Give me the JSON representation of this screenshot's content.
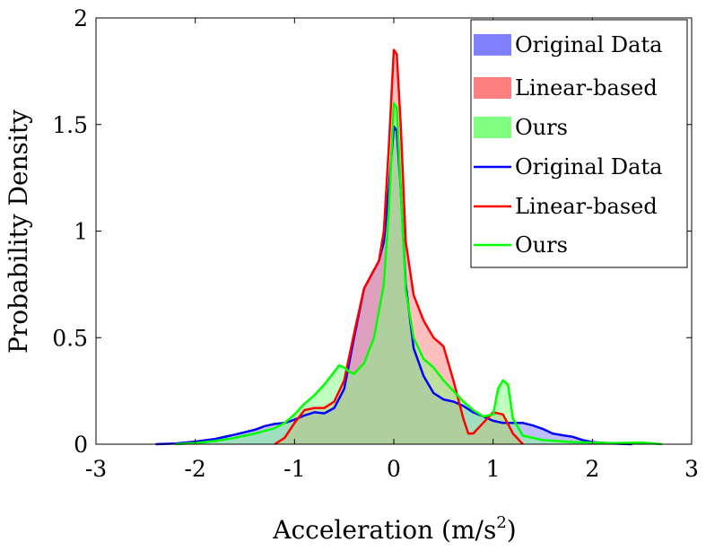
{
  "chart_data": {
    "type": "area",
    "title": "",
    "xlabel_prefix": "Acceleration (m/s",
    "xlabel_sup": "2",
    "xlabel_suffix": ")",
    "ylabel": "Probability Density",
    "xlim": [
      -3,
      3
    ],
    "ylim": [
      0,
      2
    ],
    "x_ticks": [
      -3,
      -2,
      -1,
      0,
      1,
      2,
      3
    ],
    "x_tick_labels": [
      "-3",
      "-2",
      "-1",
      "0",
      "1",
      "2",
      "3"
    ],
    "y_ticks": [
      0,
      0.5,
      1,
      1.5,
      2
    ],
    "y_tick_labels": [
      "0",
      "0.5",
      "1",
      "1.5",
      "2"
    ],
    "legend_position": "top-right",
    "series": [
      {
        "name": "Original Data",
        "color": "#0000ff",
        "fill": "#8080ff",
        "points": [
          [
            -2.4,
            0
          ],
          [
            -2.2,
            0.003
          ],
          [
            -2.0,
            0.012
          ],
          [
            -1.8,
            0.025
          ],
          [
            -1.6,
            0.045
          ],
          [
            -1.4,
            0.068
          ],
          [
            -1.3,
            0.085
          ],
          [
            -1.2,
            0.095
          ],
          [
            -1.1,
            0.1
          ],
          [
            -1.0,
            0.115
          ],
          [
            -0.9,
            0.135
          ],
          [
            -0.8,
            0.15
          ],
          [
            -0.7,
            0.145
          ],
          [
            -0.6,
            0.17
          ],
          [
            -0.5,
            0.26
          ],
          [
            -0.4,
            0.5
          ],
          [
            -0.3,
            0.73
          ],
          [
            -0.22,
            0.8
          ],
          [
            -0.15,
            0.86
          ],
          [
            -0.1,
            0.95
          ],
          [
            -0.05,
            1.2
          ],
          [
            0.0,
            1.49
          ],
          [
            0.03,
            1.47
          ],
          [
            0.07,
            1.2
          ],
          [
            0.12,
            0.75
          ],
          [
            0.2,
            0.45
          ],
          [
            0.3,
            0.32
          ],
          [
            0.4,
            0.24
          ],
          [
            0.5,
            0.21
          ],
          [
            0.6,
            0.2
          ],
          [
            0.7,
            0.18
          ],
          [
            0.8,
            0.15
          ],
          [
            0.9,
            0.13
          ],
          [
            1.0,
            0.11
          ],
          [
            1.1,
            0.1
          ],
          [
            1.2,
            0.1
          ],
          [
            1.3,
            0.1
          ],
          [
            1.4,
            0.088
          ],
          [
            1.5,
            0.072
          ],
          [
            1.6,
            0.05
          ],
          [
            1.7,
            0.042
          ],
          [
            1.8,
            0.035
          ],
          [
            1.9,
            0.02
          ],
          [
            2.0,
            0.01
          ],
          [
            2.2,
            0.003
          ],
          [
            2.4,
            0
          ]
        ]
      },
      {
        "name": "Linear-based",
        "color": "#ff0000",
        "fill": "#ff8080",
        "points": [
          [
            -1.2,
            0
          ],
          [
            -1.1,
            0.03
          ],
          [
            -1.0,
            0.1
          ],
          [
            -0.9,
            0.16
          ],
          [
            -0.8,
            0.17
          ],
          [
            -0.7,
            0.17
          ],
          [
            -0.6,
            0.2
          ],
          [
            -0.5,
            0.3
          ],
          [
            -0.4,
            0.52
          ],
          [
            -0.3,
            0.73
          ],
          [
            -0.22,
            0.8
          ],
          [
            -0.15,
            0.86
          ],
          [
            -0.1,
            1.0
          ],
          [
            -0.05,
            1.4
          ],
          [
            0.0,
            1.85
          ],
          [
            0.03,
            1.83
          ],
          [
            0.07,
            1.5
          ],
          [
            0.12,
            0.95
          ],
          [
            0.2,
            0.7
          ],
          [
            0.3,
            0.58
          ],
          [
            0.4,
            0.5
          ],
          [
            0.5,
            0.46
          ],
          [
            0.6,
            0.3
          ],
          [
            0.7,
            0.12
          ],
          [
            0.75,
            0.05
          ],
          [
            0.8,
            0.05
          ],
          [
            0.9,
            0.1
          ],
          [
            1.0,
            0.15
          ],
          [
            1.1,
            0.14
          ],
          [
            1.2,
            0.05
          ],
          [
            1.3,
            0
          ]
        ]
      },
      {
        "name": "Ours",
        "color": "#00ff00",
        "fill": "#80ff80",
        "points": [
          [
            -2.2,
            0
          ],
          [
            -2.0,
            0.005
          ],
          [
            -1.8,
            0.015
          ],
          [
            -1.6,
            0.03
          ],
          [
            -1.4,
            0.05
          ],
          [
            -1.2,
            0.075
          ],
          [
            -1.1,
            0.1
          ],
          [
            -1.0,
            0.14
          ],
          [
            -0.9,
            0.19
          ],
          [
            -0.8,
            0.23
          ],
          [
            -0.7,
            0.28
          ],
          [
            -0.6,
            0.34
          ],
          [
            -0.55,
            0.37
          ],
          [
            -0.5,
            0.36
          ],
          [
            -0.45,
            0.34
          ],
          [
            -0.4,
            0.33
          ],
          [
            -0.3,
            0.38
          ],
          [
            -0.2,
            0.5
          ],
          [
            -0.1,
            0.75
          ],
          [
            -0.05,
            1.1
          ],
          [
            0.0,
            1.6
          ],
          [
            0.03,
            1.58
          ],
          [
            0.07,
            1.2
          ],
          [
            0.12,
            0.72
          ],
          [
            0.2,
            0.5
          ],
          [
            0.3,
            0.4
          ],
          [
            0.4,
            0.36
          ],
          [
            0.5,
            0.3
          ],
          [
            0.6,
            0.25
          ],
          [
            0.7,
            0.2
          ],
          [
            0.8,
            0.16
          ],
          [
            0.9,
            0.13
          ],
          [
            1.0,
            0.14
          ],
          [
            1.05,
            0.26
          ],
          [
            1.1,
            0.3
          ],
          [
            1.15,
            0.28
          ],
          [
            1.2,
            0.12
          ],
          [
            1.3,
            0.04
          ],
          [
            1.5,
            0.02
          ],
          [
            1.8,
            0.01
          ],
          [
            2.2,
            0.005
          ],
          [
            2.5,
            0.008
          ],
          [
            2.7,
            0
          ]
        ]
      }
    ]
  },
  "legend": {
    "fill_entries": [
      "Original Data",
      "Linear-based",
      "Ours"
    ],
    "line_entries": [
      "Original Data",
      "Linear-based",
      "Ours"
    ]
  }
}
